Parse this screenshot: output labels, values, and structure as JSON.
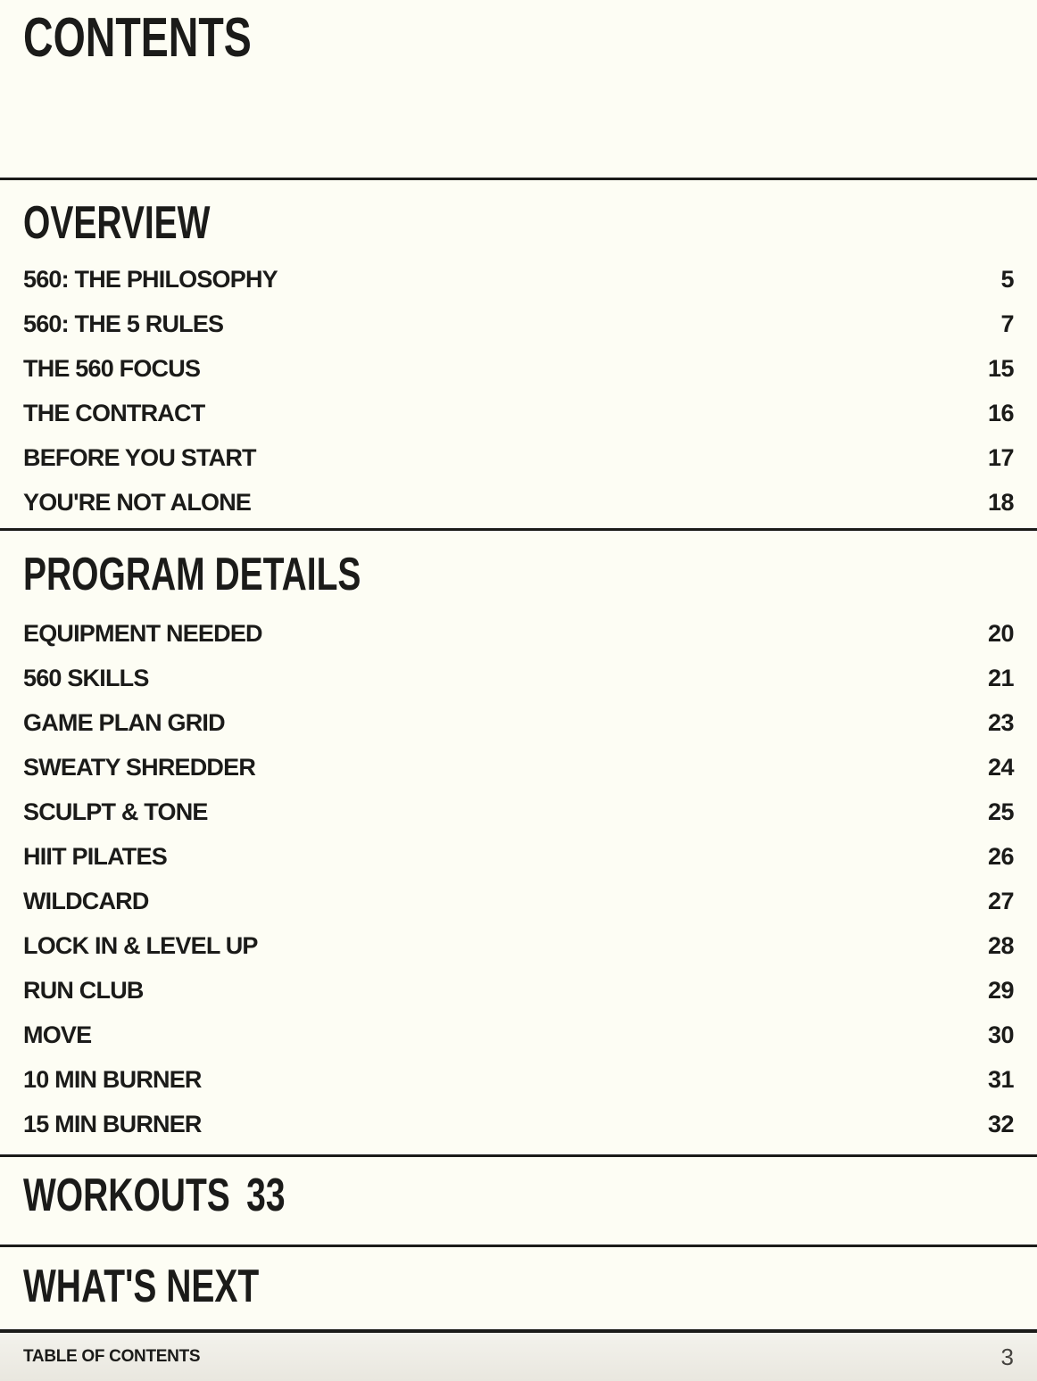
{
  "page": {
    "title": "CONTENTS"
  },
  "sections": [
    {
      "id": "overview",
      "title": "OVERVIEW",
      "items": [
        {
          "label": "560: THE PHILOSOPHY",
          "page": "5"
        },
        {
          "label": "560: THE 5 RULES",
          "page": "7"
        },
        {
          "label": "THE 560 FOCUS",
          "page": "15"
        },
        {
          "label": "THE CONTRACT",
          "page": "16"
        },
        {
          "label": "BEFORE YOU START",
          "page": "17"
        },
        {
          "label": "YOU'RE NOT ALONE",
          "page": "18"
        }
      ]
    },
    {
      "id": "program-details",
      "title": "PROGRAM DETAILS",
      "items": [
        {
          "label": "EQUIPMENT NEEDED",
          "page": "20"
        },
        {
          "label": "560 SKILLS",
          "page": "21"
        },
        {
          "label": "GAME PLAN GRID",
          "page": "23"
        },
        {
          "label": "SWEATY SHREDDER",
          "page": "24"
        },
        {
          "label": "SCULPT & TONE",
          "page": "25"
        },
        {
          "label": "HIIT PILATES",
          "page": "26"
        },
        {
          "label": "WILDCARD",
          "page": "27"
        },
        {
          "label": "LOCK IN & LEVEL UP",
          "page": "28"
        },
        {
          "label": "RUN CLUB",
          "page": "29"
        },
        {
          "label": "MOVE",
          "page": "30"
        },
        {
          "label": "10 MIN BURNER",
          "page": "31"
        },
        {
          "label": "15 MIN BURNER",
          "page": "32"
        }
      ]
    },
    {
      "id": "workouts",
      "title": "WORKOUTS",
      "page": "33"
    },
    {
      "id": "whats-next",
      "title": "WHAT'S NEXT"
    }
  ],
  "footer": {
    "label": "TABLE OF CONTENTS",
    "page_number": "3"
  },
  "colors": {
    "background": "#FDFDF4",
    "footer_background": "#ECEAE2",
    "text": "#1B1B19",
    "rule": "#1B1B19"
  }
}
